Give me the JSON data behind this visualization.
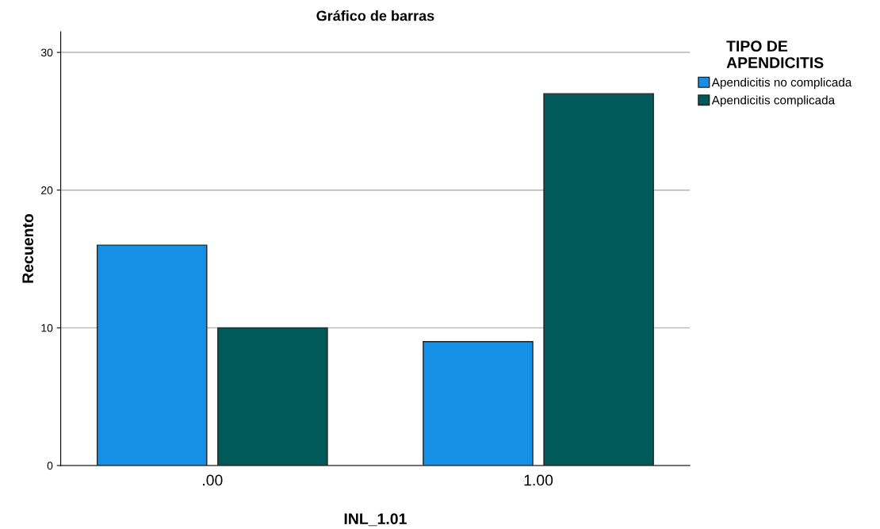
{
  "chart_data": {
    "type": "bar",
    "title": "Gráfico de barras",
    "xlabel": "INL_1.01",
    "ylabel": "Recuento",
    "legend_title": "TIPO DE\nAPENDICITIS",
    "categories": [
      ".00",
      "1.00"
    ],
    "series": [
      {
        "name": "Apendicitis no complicada",
        "color": "#1590e6",
        "values": [
          16,
          9
        ]
      },
      {
        "name": "Apendicitis complicada",
        "color": "#005a5a",
        "values": [
          10,
          27
        ]
      }
    ],
    "ylim": [
      0,
      31.5
    ],
    "yticks": [
      0,
      10,
      20,
      30
    ],
    "grid": "y",
    "legend": "top right"
  }
}
